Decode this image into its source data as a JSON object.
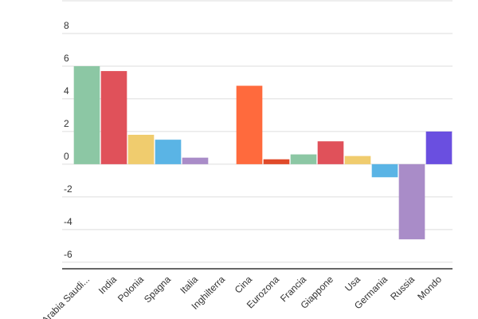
{
  "chart_data": {
    "type": "bar",
    "categories": [
      "Arabia Saudi...",
      "India",
      "Polonia",
      "Spagna",
      "Italia",
      "Inghilterra",
      "Cina",
      "Eurozona",
      "Francia",
      "Giappone",
      "Usa",
      "Germania",
      "Russia",
      "Mondo"
    ],
    "values": [
      6.0,
      5.7,
      1.8,
      1.5,
      0.4,
      0,
      4.8,
      0.3,
      0.6,
      1.4,
      0.5,
      -0.8,
      -4.6,
      2.0
    ],
    "colors": [
      "#8cc7a4",
      "#e0515a",
      "#f0cc6e",
      "#5ab4e5",
      "#a98cc8",
      "#ffffff",
      "#ff6a3d",
      "#e04a2a",
      "#8cc7a4",
      "#e0515a",
      "#f0cc6e",
      "#5ab4e5",
      "#a98cc8",
      "#6a4fe0"
    ],
    "ylim": [
      -6.4,
      10
    ],
    "yticks": [
      -6,
      -4,
      -2,
      0,
      2,
      4,
      6,
      8
    ],
    "grid": true
  }
}
